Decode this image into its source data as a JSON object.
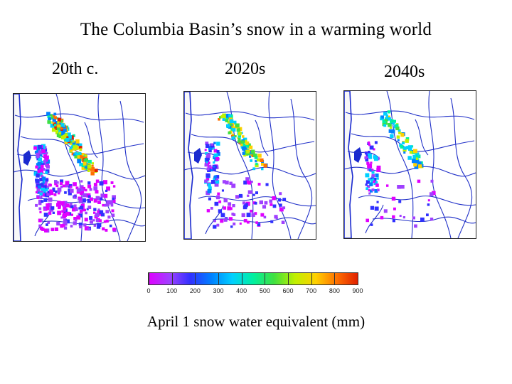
{
  "title": "The Columbia Basin’s snow in a warming world",
  "panels": [
    {
      "label": "20th c.",
      "snow_extent": "high"
    },
    {
      "label": "2020s",
      "snow_extent": "medium"
    },
    {
      "label": "2040s",
      "snow_extent": "low"
    }
  ],
  "colorbar": {
    "ticks": [
      "0",
      "100",
      "200",
      "300",
      "400",
      "500",
      "600",
      "700",
      "800",
      "900"
    ],
    "colors": [
      "#e000ff",
      "#a040ff",
      "#3030ff",
      "#0080ff",
      "#00d0ff",
      "#00f0a0",
      "#40e040",
      "#c0f000",
      "#ffd000",
      "#ff7000",
      "#e02000"
    ]
  },
  "caption": "April 1 snow water equivalent (mm)"
}
